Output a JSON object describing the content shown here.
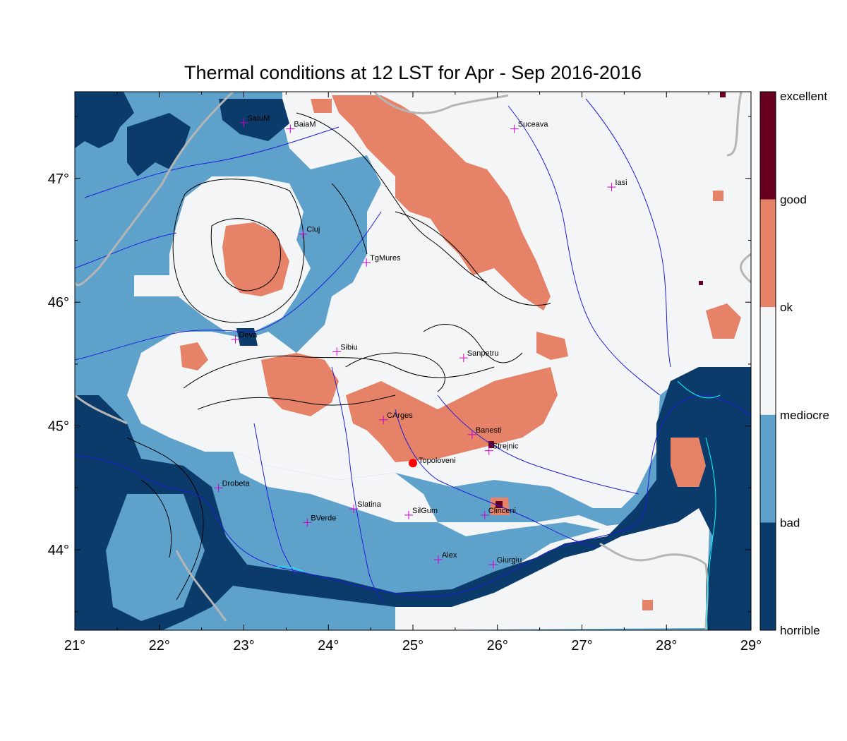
{
  "title": "Thermal conditions at 12 LST for Apr - Sep  2016-2016",
  "lon_ticks": [
    "21°",
    "22°",
    "23°",
    "24°",
    "25°",
    "26°",
    "27°",
    "28°",
    "29°"
  ],
  "lat_ticks": [
    "47°",
    "46°",
    "45°",
    "44°"
  ],
  "legend": {
    "labels": [
      "excellent",
      "good",
      "ok",
      "mediocre",
      "bad",
      "horrible"
    ],
    "colors": [
      "#67001f",
      "#e58267",
      "#f4f5f6",
      "#5ea2cc",
      "#0b3b6b"
    ]
  },
  "colors": {
    "ok": "#f4f5f6",
    "bad_light": "#5ea2cc",
    "horrible": "#0b3b6b",
    "good": "#e58267",
    "excellent": "#67001f",
    "rivers": "#1f1fd6",
    "borders": "#b5b5b5",
    "contours": "#000000",
    "lakes": "#00ffff",
    "city_marker": "#cc00cc",
    "point": "#ff0000"
  },
  "cities": [
    {
      "name": "SatuM",
      "lon": 23.0,
      "lat": 47.45
    },
    {
      "name": "BaiaM",
      "lon": 23.55,
      "lat": 47.4
    },
    {
      "name": "Suceava",
      "lon": 26.2,
      "lat": 47.4
    },
    {
      "name": "Iasi",
      "lon": 27.35,
      "lat": 46.93
    },
    {
      "name": "Cluj",
      "lon": 23.7,
      "lat": 46.55
    },
    {
      "name": "TgMures",
      "lon": 24.45,
      "lat": 46.32
    },
    {
      "name": "Deva",
      "lon": 22.9,
      "lat": 45.7
    },
    {
      "name": "Sibiu",
      "lon": 24.1,
      "lat": 45.6
    },
    {
      "name": "Sanpetru",
      "lon": 25.6,
      "lat": 45.55
    },
    {
      "name": "CArges",
      "lon": 24.65,
      "lat": 45.05
    },
    {
      "name": "Banesti",
      "lon": 25.7,
      "lat": 44.93
    },
    {
      "name": "Strejnic",
      "lon": 25.9,
      "lat": 44.8
    },
    {
      "name": "Drobeta",
      "lon": 22.7,
      "lat": 44.5
    },
    {
      "name": "Slatina",
      "lon": 24.3,
      "lat": 44.33
    },
    {
      "name": "SilGum",
      "lon": 24.95,
      "lat": 44.28
    },
    {
      "name": "Clinceni",
      "lon": 25.85,
      "lat": 44.28
    },
    {
      "name": "BVerde",
      "lon": 23.75,
      "lat": 44.22
    },
    {
      "name": "Alex",
      "lon": 25.3,
      "lat": 43.92
    },
    {
      "name": "Giurgiu",
      "lon": 25.95,
      "lat": 43.88
    }
  ],
  "point": {
    "name": "Topoloveni",
    "lon": 25.0,
    "lat": 44.7
  }
}
